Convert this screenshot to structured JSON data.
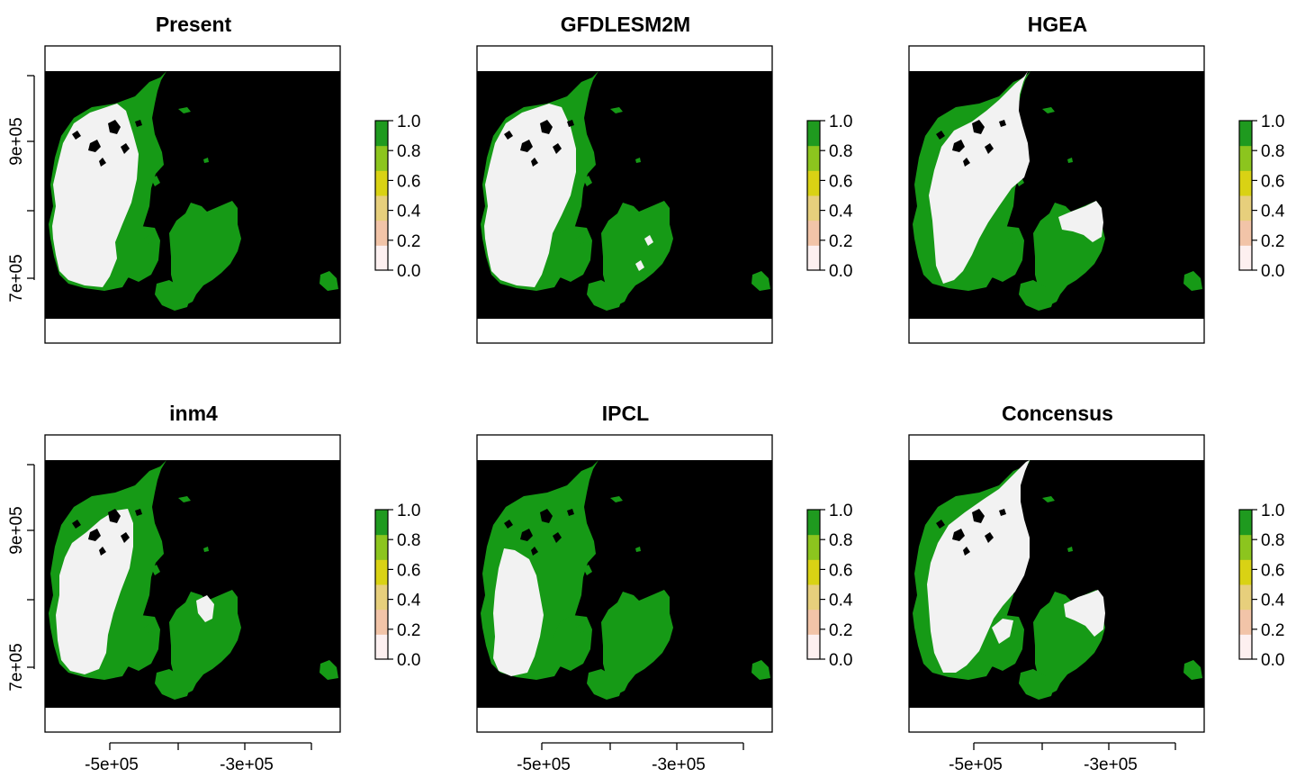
{
  "figure": {
    "layout": "2 rows x 3 columns of raster maps, each with a colour bar",
    "x_tick_labels": [
      "-5e+05",
      "-3e+05"
    ],
    "y_tick_labels": [
      "9e+05",
      "7e+05"
    ],
    "legend_ticks": [
      "1.0",
      "0.8",
      "0.6",
      "0.4",
      "0.2",
      "0.0"
    ],
    "legend_colors": [
      "#fdf0f0",
      "#f2c4a8",
      "#e7cf7c",
      "#d9d214",
      "#8cc51e",
      "#1f9a1f"
    ],
    "colors": {
      "background_sea": "#000000",
      "suitable_land": "#f2f2f2",
      "unsuitable_land": "#169a16",
      "frame": "#000000"
    }
  },
  "panels": [
    {
      "title": "Present",
      "show_y_axis": true,
      "show_x_axis": false
    },
    {
      "title": "GFDLESM2M",
      "show_y_axis": false,
      "show_x_axis": false
    },
    {
      "title": "HGEA",
      "show_y_axis": false,
      "show_x_axis": false
    },
    {
      "title": "inm4",
      "show_y_axis": true,
      "show_x_axis": true
    },
    {
      "title": "IPCL",
      "show_y_axis": false,
      "show_x_axis": true
    },
    {
      "title": "Concensus",
      "show_y_axis": false,
      "show_x_axis": true
    }
  ]
}
